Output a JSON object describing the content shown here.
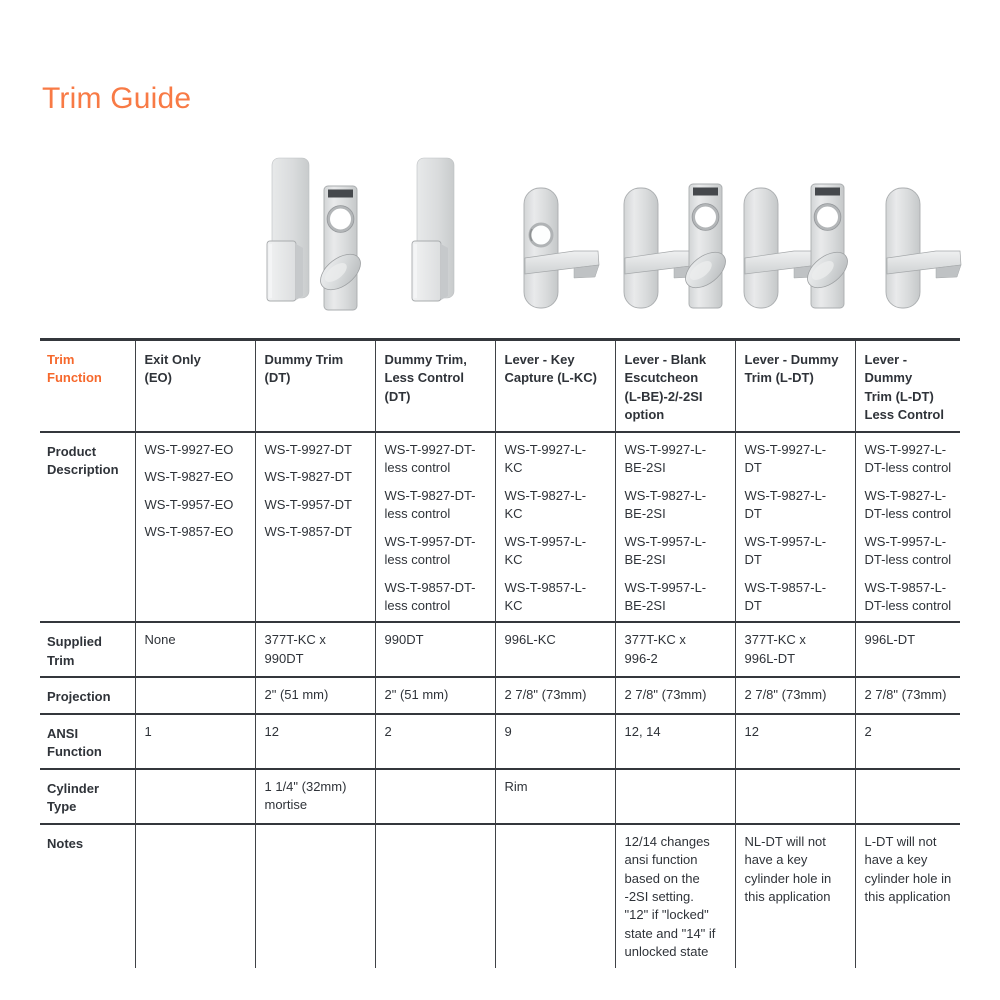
{
  "page": {
    "title": "Trim Guide"
  },
  "colors": {
    "accent_orange_title": "#f87a45",
    "accent_orange_header": "#f6682c",
    "text_dark": "#2f3339",
    "rule_dark": "#34373c",
    "hardware_metal": "#d9dbdc"
  },
  "hardware_images": [
    "flat-pull-trim",
    "thumbturn-cylinder-escutcheon",
    "flat-pull-trim",
    "lever-trim-with-cylinder-hole",
    "lever-trim-blank",
    "thumbturn-cylinder-escutcheon",
    "lever-trim-blank",
    "thumbturn-cylinder-escutcheon",
    "lever-trim-blank"
  ],
  "table": {
    "corner_label": "Trim\nFunction",
    "columns": [
      "Exit Only\n(EO)",
      "Dummy Trim\n(DT)",
      "Dummy Trim,\nLess Control\n(DT)",
      "Lever - Key\nCapture (L-KC)",
      "Lever - Blank\nEscutcheon\n(L-BE)-2/-2SI\noption",
      "Lever - Dummy\nTrim (L-DT)",
      "Lever - Dummy\nTrim (L-DT)\nLess Control"
    ],
    "rows": [
      {
        "label": "Product\nDescription",
        "cells": [
          [
            "WS-T-9927-EO",
            "WS-T-9827-EO",
            "WS-T-9957-EO",
            "WS-T-9857-EO"
          ],
          [
            "WS-T-9927-DT",
            "WS-T-9827-DT",
            "WS-T-9957-DT",
            "WS-T-9857-DT"
          ],
          [
            "WS-T-9927-DT-\nless control",
            "WS-T-9827-DT-\nless control",
            "WS-T-9957-DT-\nless control",
            "WS-T-9857-DT-\nless control"
          ],
          [
            "WS-T-9927-L-\nKC",
            "WS-T-9827-L-\nKC",
            "WS-T-9957-L-\nKC",
            "WS-T-9857-L-\nKC"
          ],
          [
            "WS-T-9927-L-\nBE-2SI",
            "WS-T-9827-L-\nBE-2SI",
            "WS-T-9957-L-\nBE-2SI",
            "WS-T-9957-L-\nBE-2SI"
          ],
          [
            "WS-T-9927-L-\nDT",
            "WS-T-9827-L-\nDT",
            "WS-T-9957-L-\nDT",
            "WS-T-9857-L-\nDT"
          ],
          [
            "WS-T-9927-L-\nDT-less control",
            "WS-T-9827-L-\nDT-less control",
            "WS-T-9957-L-\nDT-less control",
            "WS-T-9857-L-\nDT-less control"
          ]
        ]
      },
      {
        "label": "Supplied\nTrim",
        "cells": [
          "None",
          "377T-KC x\n990DT",
          "990DT",
          "996L-KC",
          "377T-KC x\n996-2",
          "377T-KC x\n996L-DT",
          "996L-DT"
        ]
      },
      {
        "label": "Projection",
        "cells": [
          "",
          "2\" (51 mm)",
          "2\" (51 mm)",
          "2 7/8\" (73mm)",
          "2 7/8\" (73mm)",
          "2 7/8\" (73mm)",
          "2 7/8\" (73mm)"
        ]
      },
      {
        "label": "ANSI\nFunction",
        "cells": [
          "1",
          "12",
          "2",
          "9",
          "12, 14",
          "12",
          "2"
        ]
      },
      {
        "label": "Cylinder\nType",
        "cells": [
          "",
          "1 1/4\" (32mm)\nmortise",
          "",
          "Rim",
          "",
          "",
          ""
        ]
      },
      {
        "label": "Notes",
        "cells": [
          "",
          "",
          "",
          "",
          "12/14 changes\nansi function\nbased on the\n-2SI setting.\n\"12\" if \"locked\"\nstate and \"14\" if\nunlocked state",
          "NL-DT will not\nhave a key\ncylinder hole in\nthis application",
          "L-DT will not\nhave a key\ncylinder hole in\nthis application"
        ]
      }
    ]
  }
}
